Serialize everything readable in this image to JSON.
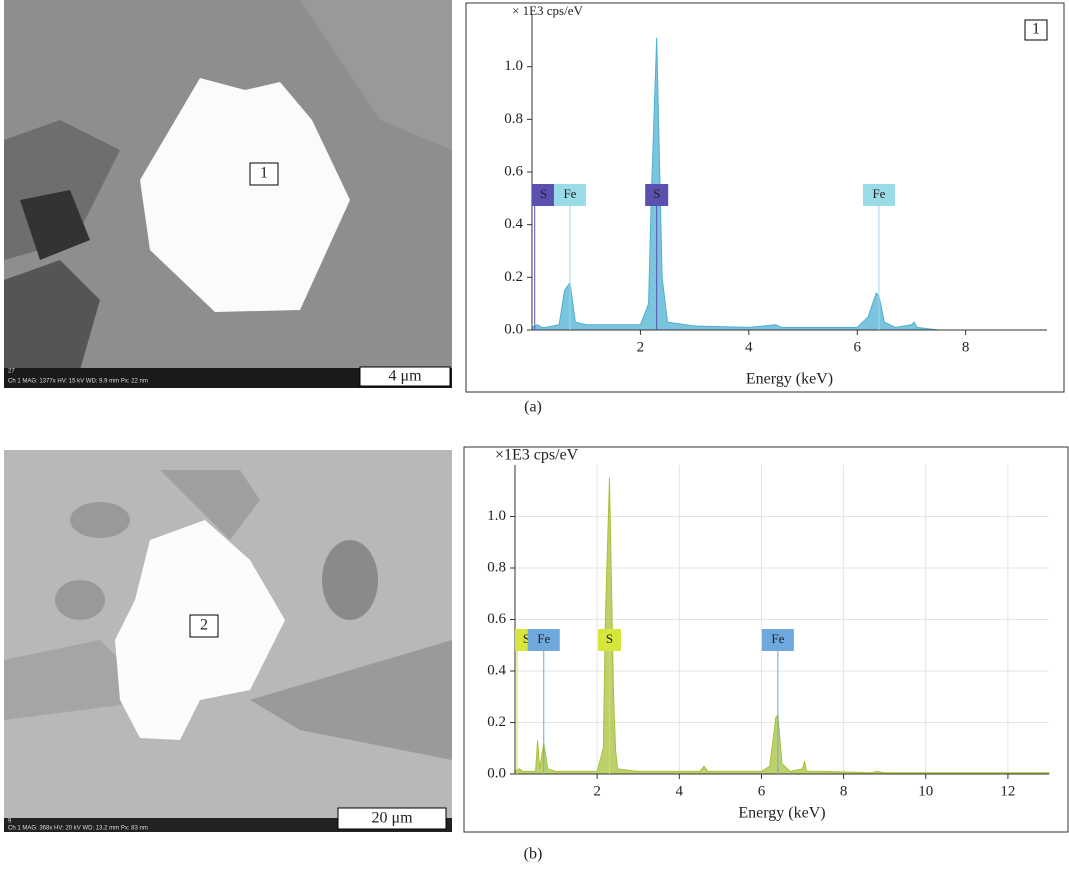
{
  "captions": [
    "(a)",
    "(b)"
  ],
  "images": [
    {
      "marker": "1",
      "scale_bar": "4 μm",
      "id": "27",
      "info": "Ch 1   MAG: 1377x   HV: 15 kV   WD: 9.9 mm   Px: 22 nm"
    },
    {
      "marker": "2",
      "scale_bar": "20 μm",
      "id": "9",
      "info": "Ch 1   MAG: 368x   HV: 20 kV   WD: 13.2 mm   Px: 83 nm"
    }
  ],
  "chart_data": [
    {
      "type": "area",
      "y_unit": "× 1E3 cps/eV",
      "xlabel": "Energy (keV)",
      "spot": "1",
      "color": "#4fb0d2",
      "grid": false,
      "x": [
        0,
        0.1,
        0.18,
        0.25,
        0.5,
        0.6,
        0.7,
        0.8,
        1,
        2,
        2.15,
        2.2,
        2.3,
        2.4,
        2.5,
        3,
        4,
        4.5,
        4.6,
        5,
        6,
        6.2,
        6.35,
        6.4,
        6.5,
        6.7,
        7,
        7.05,
        7.1,
        7.5,
        9.5
      ],
      "values": [
        0.01,
        0.02,
        0.01,
        0.01,
        0.02,
        0.15,
        0.18,
        0.03,
        0.02,
        0.02,
        0.1,
        0.5,
        1.11,
        0.2,
        0.03,
        0.015,
        0.01,
        0.02,
        0.01,
        0.01,
        0.01,
        0.05,
        0.14,
        0.13,
        0.03,
        0.01,
        0.02,
        0.03,
        0.01,
        0,
        0
      ],
      "xlim": [
        0,
        9.5
      ],
      "ylim": [
        0,
        1.2
      ],
      "xticks": [
        2,
        4,
        6,
        8
      ],
      "yticks": [
        {
          "value": 0,
          "label": "0.0"
        },
        0.2,
        0.4,
        0.6,
        0.8,
        {
          "value": 1,
          "label": "1.0"
        }
      ],
      "peaks": [
        {
          "label": "S",
          "x": 0.05,
          "color": "#5b4fb0"
        },
        {
          "label": "Fe",
          "x": 0.7,
          "color": "#9adbe8"
        },
        {
          "label": "S",
          "x": 2.3,
          "color": "#5b4fb0"
        },
        {
          "label": "Fe",
          "x": 6.4,
          "color": "#9adbe8"
        }
      ]
    },
    {
      "type": "area",
      "y_unit": "×1E3 cps/eV",
      "xlabel": "Energy (keV)",
      "color": "#a6c23a",
      "grid": true,
      "x": [
        0,
        0.1,
        0.2,
        0.5,
        0.55,
        0.6,
        0.7,
        0.8,
        1,
        2,
        2.15,
        2.2,
        2.3,
        2.4,
        2.45,
        2.5,
        3,
        4,
        4.5,
        4.6,
        4.7,
        6,
        6.2,
        6.35,
        6.4,
        6.5,
        6.7,
        7,
        7.05,
        7.1,
        7.5,
        8.7,
        8.8,
        9,
        13
      ],
      "values": [
        0.01,
        0.02,
        0.01,
        0.01,
        0.13,
        0.02,
        0.12,
        0.02,
        0.01,
        0.01,
        0.1,
        0.6,
        1.15,
        0.3,
        0.09,
        0.02,
        0.01,
        0.01,
        0.01,
        0.03,
        0.01,
        0.01,
        0.03,
        0.22,
        0.23,
        0.04,
        0.01,
        0.02,
        0.05,
        0.01,
        0.01,
        0.005,
        0.01,
        0.005,
        0.005
      ],
      "xlim": [
        0,
        13
      ],
      "ylim": [
        0,
        1.2
      ],
      "xticks": [
        2,
        4,
        6,
        8,
        10,
        12
      ],
      "yticks": [
        {
          "value": 0,
          "label": "0.0"
        },
        0.2,
        0.4,
        0.6,
        0.8,
        {
          "value": 1,
          "label": "1.0"
        }
      ],
      "peaks": [
        {
          "label": "S",
          "x": 0.05,
          "color": "#d6e63a"
        },
        {
          "label": "Fe",
          "x": 0.7,
          "color": "#6fa8dc"
        },
        {
          "label": "S",
          "x": 2.3,
          "color": "#d6e63a"
        },
        {
          "label": "Fe",
          "x": 6.4,
          "color": "#6fa8dc"
        }
      ]
    }
  ]
}
